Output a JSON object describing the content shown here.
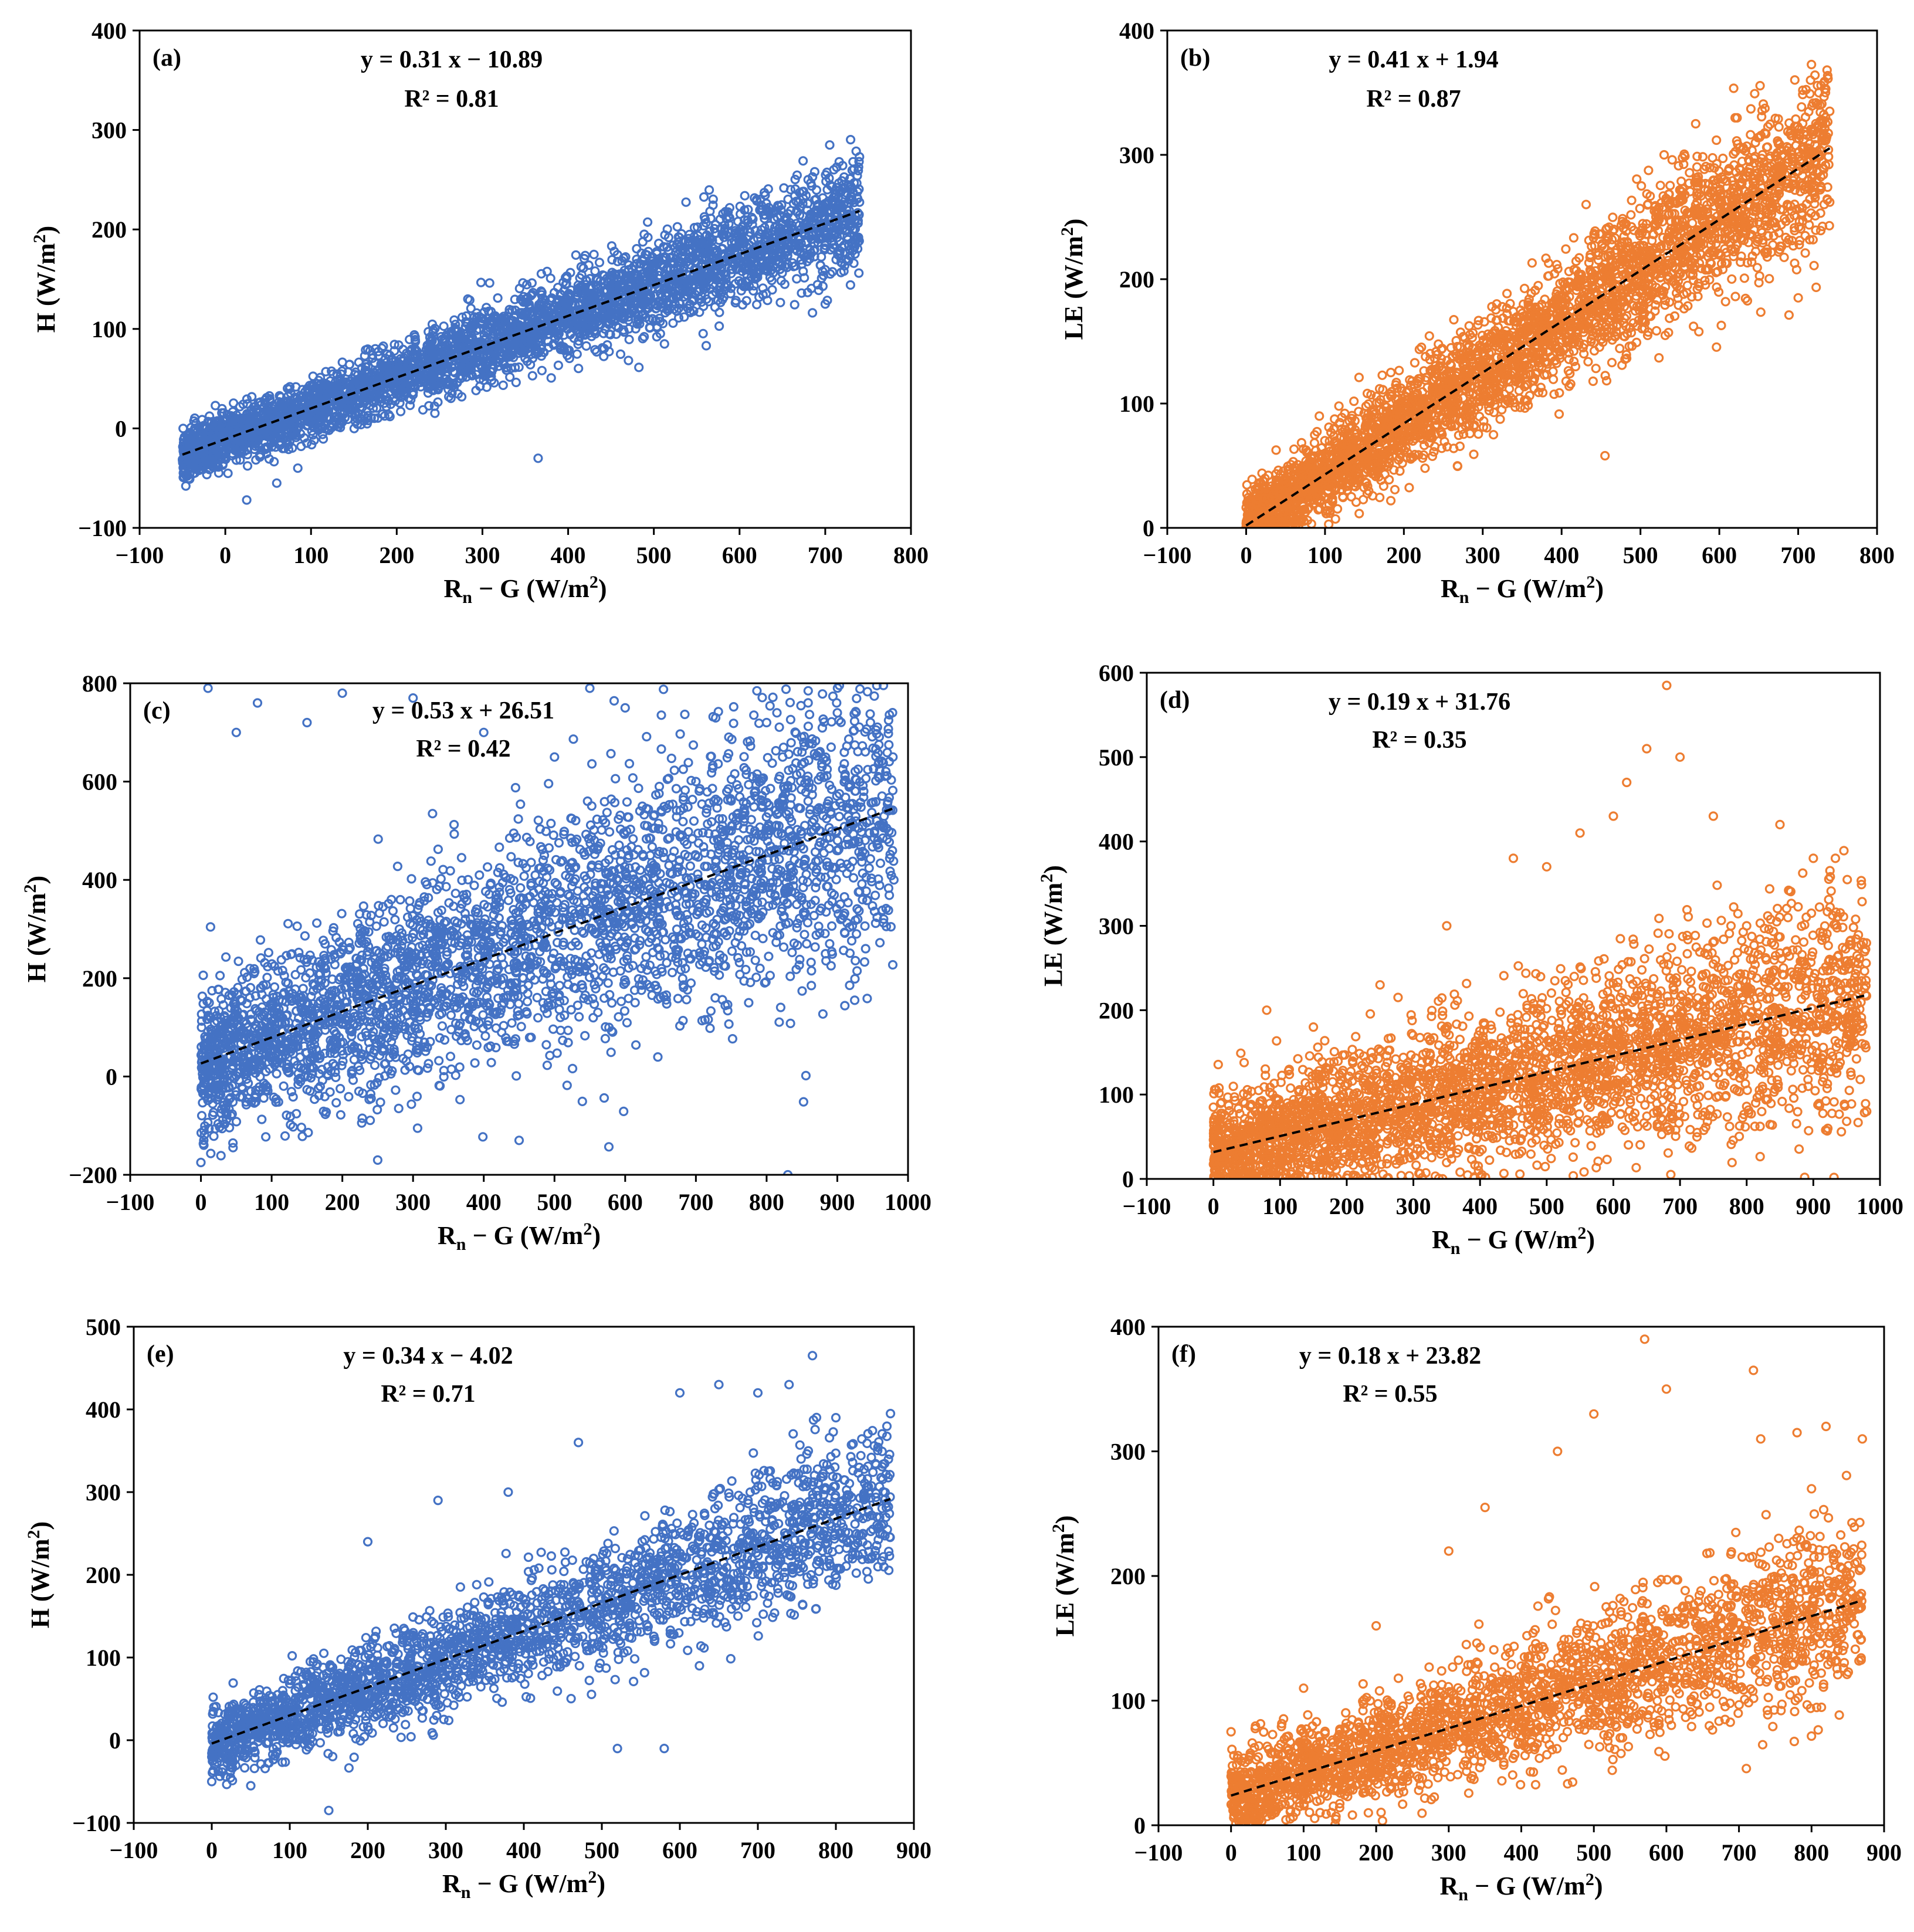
{
  "chart_data": [
    {
      "panel_label": "(a)",
      "type": "scatter",
      "color": "#4472C4",
      "xlabel": "Rn − G (W/m²)",
      "ylabel": "H  (W/m²)",
      "xlim": [
        -100,
        800
      ],
      "ylim": [
        -100,
        400
      ],
      "xticks": [
        -100,
        0,
        100,
        200,
        300,
        400,
        500,
        600,
        700,
        800
      ],
      "yticks": [
        -100,
        0,
        100,
        200,
        300,
        400
      ],
      "equation": "y = 0.31 x − 10.89",
      "r2": "R² = 0.81",
      "fit": {
        "slope": 0.31,
        "intercept": -10.89,
        "x_range": [
          -50,
          740
        ]
      },
      "points_summary": {
        "x_range": [
          -50,
          740
        ],
        "approx_count": 3600,
        "spread_sd": 22
      },
      "series": [
        {
          "name": "",
          "points": [
            [
              -45,
              -7
            ],
            [
              0,
              -30
            ],
            [
              25,
              -72
            ],
            [
              60,
              -55
            ],
            [
              100,
              20
            ],
            [
              150,
              35
            ],
            [
              200,
              50
            ],
            [
              250,
              70
            ],
            [
              300,
              85
            ],
            [
              350,
              100
            ],
            [
              365,
              -30
            ],
            [
              400,
              115
            ],
            [
              450,
              120
            ],
            [
              480,
              170
            ],
            [
              520,
              150
            ],
            [
              560,
              210
            ],
            [
              600,
              190
            ],
            [
              620,
              230
            ],
            [
              650,
              205
            ],
            [
              680,
              250
            ],
            [
              700,
              125
            ],
            [
              710,
              260
            ],
            [
              740,
              273
            ]
          ]
        }
      ]
    },
    {
      "panel_label": "(b)",
      "type": "scatter",
      "color": "#ED7D31",
      "xlabel": "Rn − G (W/m²)",
      "ylabel": "LE  (W/m²)",
      "xlim": [
        -100,
        800
      ],
      "ylim": [
        0,
        400
      ],
      "xticks": [
        -100,
        0,
        100,
        200,
        300,
        400,
        500,
        600,
        700,
        800
      ],
      "yticks": [
        0,
        100,
        200,
        300,
        400
      ],
      "equation": "y = 0.41 x + 1.94",
      "r2": "R² = 0.87",
      "fit": {
        "slope": 0.41,
        "intercept": 1.94,
        "x_range": [
          0,
          740
        ]
      },
      "points_summary": {
        "x_range": [
          0,
          740
        ],
        "approx_count": 3600,
        "spread_sd": 26
      },
      "series": [
        {
          "name": "",
          "points": [
            [
              5,
              2
            ],
            [
              50,
              25
            ],
            [
              100,
              40
            ],
            [
              150,
              60
            ],
            [
              200,
              80
            ],
            [
              250,
              110
            ],
            [
              300,
              130
            ],
            [
              350,
              150
            ],
            [
              400,
              165
            ],
            [
              450,
              190
            ],
            [
              455,
              58
            ],
            [
              500,
              210
            ],
            [
              530,
              300
            ],
            [
              570,
              325
            ],
            [
              600,
              260
            ],
            [
              640,
              337
            ],
            [
              680,
              290
            ],
            [
              700,
              185
            ],
            [
              720,
              270
            ],
            [
              740,
              262
            ]
          ]
        }
      ]
    },
    {
      "panel_label": "(c)",
      "type": "scatter",
      "color": "#4472C4",
      "xlabel": "Rn − G (W/m²)",
      "ylabel": "H  (W/m²)",
      "xlim": [
        -100,
        1000
      ],
      "ylim": [
        -200,
        800
      ],
      "xticks": [
        -100,
        0,
        100,
        200,
        300,
        400,
        500,
        600,
        700,
        800,
        900,
        1000
      ],
      "yticks": [
        -200,
        0,
        200,
        400,
        600,
        800
      ],
      "equation": "y = 0.53 x + 26.51",
      "r2": "R² = 0.42",
      "fit": {
        "slope": 0.53,
        "intercept": 26.51,
        "x_range": [
          0,
          980
        ]
      },
      "points_summary": {
        "x_range": [
          0,
          980
        ],
        "approx_count": 3400,
        "spread_sd": 130
      },
      "series": [
        {
          "name": "",
          "points": [
            [
              0,
              -175
            ],
            [
              10,
              790
            ],
            [
              50,
              700
            ],
            [
              80,
              760
            ],
            [
              150,
              720
            ],
            [
              200,
              780
            ],
            [
              250,
              -170
            ],
            [
              300,
              770
            ],
            [
              400,
              700
            ],
            [
              450,
              -130
            ],
            [
              500,
              650
            ],
            [
              550,
              790
            ],
            [
              600,
              750
            ],
            [
              700,
              600
            ],
            [
              750,
              500
            ],
            [
              800,
              720
            ],
            [
              830,
              -200
            ],
            [
              850,
              660
            ],
            [
              900,
              740
            ],
            [
              940,
              260
            ],
            [
              980,
              400
            ]
          ]
        }
      ]
    },
    {
      "panel_label": "(d)",
      "type": "scatter",
      "color": "#ED7D31",
      "xlabel": "Rn − G (W/m²)",
      "ylabel": "LE  (W/m²)",
      "xlim": [
        -100,
        1000
      ],
      "ylim": [
        0,
        600
      ],
      "xticks": [
        -100,
        0,
        100,
        200,
        300,
        400,
        500,
        600,
        700,
        800,
        900,
        1000
      ],
      "yticks": [
        0,
        100,
        200,
        300,
        400,
        500,
        600
      ],
      "equation": "y = 0.19 x + 31.76",
      "r2": "R² = 0.35",
      "fit": {
        "slope": 0.19,
        "intercept": 31.76,
        "x_range": [
          0,
          980
        ]
      },
      "points_summary": {
        "x_range": [
          0,
          980
        ],
        "approx_count": 3400,
        "spread_sd": 55
      },
      "series": [
        {
          "name": "",
          "points": [
            [
              0,
              85
            ],
            [
              30,
              60
            ],
            [
              80,
              200
            ],
            [
              150,
              180
            ],
            [
              250,
              230
            ],
            [
              350,
              300
            ],
            [
              450,
              380
            ],
            [
              500,
              370
            ],
            [
              550,
              410
            ],
            [
              600,
              430
            ],
            [
              620,
              470
            ],
            [
              650,
              510
            ],
            [
              680,
              585
            ],
            [
              700,
              500
            ],
            [
              750,
              430
            ],
            [
              800,
              300
            ],
            [
              850,
              420
            ],
            [
              900,
              380
            ],
            [
              950,
              150
            ],
            [
              980,
              80
            ]
          ]
        }
      ]
    },
    {
      "panel_label": "(e)",
      "type": "scatter",
      "color": "#4472C4",
      "xlabel": "Rn − G (W/m²)",
      "ylabel": "H  (W/m²)",
      "xlim": [
        -100,
        900
      ],
      "ylim": [
        -100,
        500
      ],
      "xticks": [
        -100,
        0,
        100,
        200,
        300,
        400,
        500,
        600,
        700,
        800,
        900
      ],
      "yticks": [
        -100,
        0,
        100,
        200,
        300,
        400,
        500
      ],
      "equation": "y = 0.34 x − 4.02",
      "r2": "R² = 0.71",
      "fit": {
        "slope": 0.34,
        "intercept": -4.02,
        "x_range": [
          0,
          870
        ]
      },
      "points_summary": {
        "x_range": [
          0,
          870
        ],
        "approx_count": 2600,
        "spread_sd": 38
      },
      "series": [
        {
          "name": "",
          "points": [
            [
              0,
              -50
            ],
            [
              50,
              -55
            ],
            [
              150,
              -85
            ],
            [
              200,
              240
            ],
            [
              290,
              290
            ],
            [
              380,
              300
            ],
            [
              470,
              360
            ],
            [
              520,
              -10
            ],
            [
              580,
              -10
            ],
            [
              600,
              420
            ],
            [
              650,
              430
            ],
            [
              700,
              420
            ],
            [
              740,
              430
            ],
            [
              770,
              465
            ],
            [
              800,
              390
            ],
            [
              840,
              270
            ],
            [
              870,
              395
            ]
          ]
        }
      ]
    },
    {
      "panel_label": "(f)",
      "type": "scatter",
      "color": "#ED7D31",
      "xlabel": "Rn − G (W/m²)",
      "ylabel": "LE  (W/m²)",
      "xlim": [
        -100,
        900
      ],
      "ylim": [
        0,
        400
      ],
      "xticks": [
        -100,
        0,
        100,
        200,
        300,
        400,
        500,
        600,
        700,
        800,
        900
      ],
      "yticks": [
        0,
        100,
        200,
        300,
        400
      ],
      "equation": "y = 0.18 x + 23.82",
      "r2": "R² = 0.55",
      "fit": {
        "slope": 0.18,
        "intercept": 23.82,
        "x_range": [
          0,
          870
        ]
      },
      "points_summary": {
        "x_range": [
          0,
          870
        ],
        "approx_count": 2600,
        "spread_sd": 28
      },
      "series": [
        {
          "name": "",
          "points": [
            [
              0,
              75
            ],
            [
              100,
              110
            ],
            [
              200,
              160
            ],
            [
              300,
              220
            ],
            [
              350,
              255
            ],
            [
              450,
              300
            ],
            [
              500,
              330
            ],
            [
              570,
              390
            ],
            [
              600,
              350
            ],
            [
              720,
              365
            ],
            [
              730,
              310
            ],
            [
              780,
              315
            ],
            [
              800,
              270
            ],
            [
              820,
              320
            ],
            [
              870,
              310
            ]
          ]
        }
      ]
    }
  ]
}
